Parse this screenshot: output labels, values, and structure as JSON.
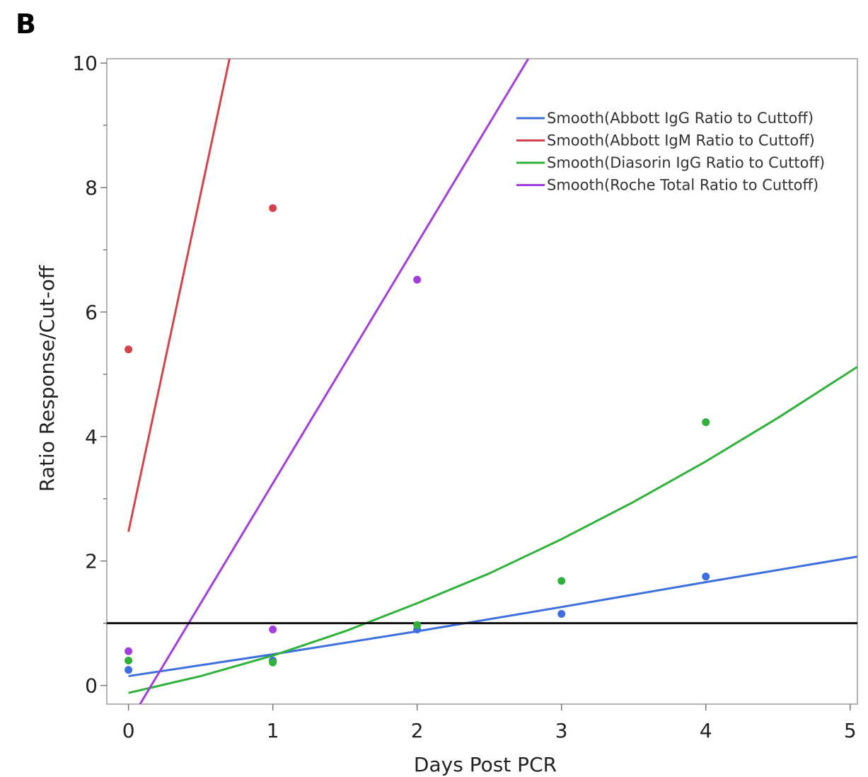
{
  "panel_label": "B",
  "chart_data": {
    "type": "scatter",
    "xlabel": "Days Post PCR",
    "ylabel": "Ratio Response/Cut-off",
    "xlim": [
      -0.15,
      5.05
    ],
    "ylim": [
      -0.3,
      10.07
    ],
    "xticks": [
      0,
      1,
      2,
      3,
      4,
      5
    ],
    "yticks": [
      0,
      2,
      4,
      6,
      8,
      10
    ],
    "y_minor_step": 1,
    "grid": false,
    "legend_position": "top-right",
    "reference_line": {
      "y": 1.0,
      "color": "#111111"
    },
    "series": [
      {
        "name": "Smooth(Abbott IgG Ratio to Cuttoff)",
        "color": "#3e6fe0",
        "points": [
          {
            "x": 0,
            "y": 0.25
          },
          {
            "x": 1,
            "y": 0.4
          },
          {
            "x": 2,
            "y": 0.9
          },
          {
            "x": 3,
            "y": 1.15
          },
          {
            "x": 4,
            "y": 1.75
          }
        ],
        "curve": [
          {
            "x": 0,
            "y": 0.15
          },
          {
            "x": 1,
            "y": 0.5
          },
          {
            "x": 2,
            "y": 0.87
          },
          {
            "x": 3,
            "y": 1.26
          },
          {
            "x": 4,
            "y": 1.66
          },
          {
            "x": 5.05,
            "y": 2.07
          }
        ]
      },
      {
        "name": "Smooth(Abbott IgM Ratio to Cuttoff)",
        "color": "#d6414c",
        "points": [
          {
            "x": 0,
            "y": 5.4
          },
          {
            "x": 1,
            "y": 7.67
          }
        ],
        "curve": [
          {
            "x": 0,
            "y": 2.47
          },
          {
            "x": 0.7,
            "y": 10.07
          }
        ]
      },
      {
        "name": "Smooth(Diasorin IgG Ratio to Cuttoff)",
        "color": "#2fb23a",
        "points": [
          {
            "x": 0,
            "y": 0.4
          },
          {
            "x": 1,
            "y": 0.37
          },
          {
            "x": 2,
            "y": 0.97
          },
          {
            "x": 3,
            "y": 1.68
          },
          {
            "x": 4,
            "y": 4.23
          }
        ],
        "curve": [
          {
            "x": 0,
            "y": -0.12
          },
          {
            "x": 0.5,
            "y": 0.15
          },
          {
            "x": 1,
            "y": 0.48
          },
          {
            "x": 1.5,
            "y": 0.87
          },
          {
            "x": 2,
            "y": 1.32
          },
          {
            "x": 2.5,
            "y": 1.8
          },
          {
            "x": 3,
            "y": 2.35
          },
          {
            "x": 3.5,
            "y": 2.95
          },
          {
            "x": 4,
            "y": 3.6
          },
          {
            "x": 4.5,
            "y": 4.3
          },
          {
            "x": 5.05,
            "y": 5.12
          }
        ]
      },
      {
        "name": "Smooth(Roche Total Ratio to Cuttoff)",
        "color": "#a23de0",
        "points": [
          {
            "x": 0,
            "y": 0.55
          },
          {
            "x": 1,
            "y": 0.9
          },
          {
            "x": 2,
            "y": 6.52
          }
        ],
        "curve": [
          {
            "x": 0.08,
            "y": -0.3
          },
          {
            "x": 2.77,
            "y": 10.07
          }
        ]
      }
    ]
  }
}
